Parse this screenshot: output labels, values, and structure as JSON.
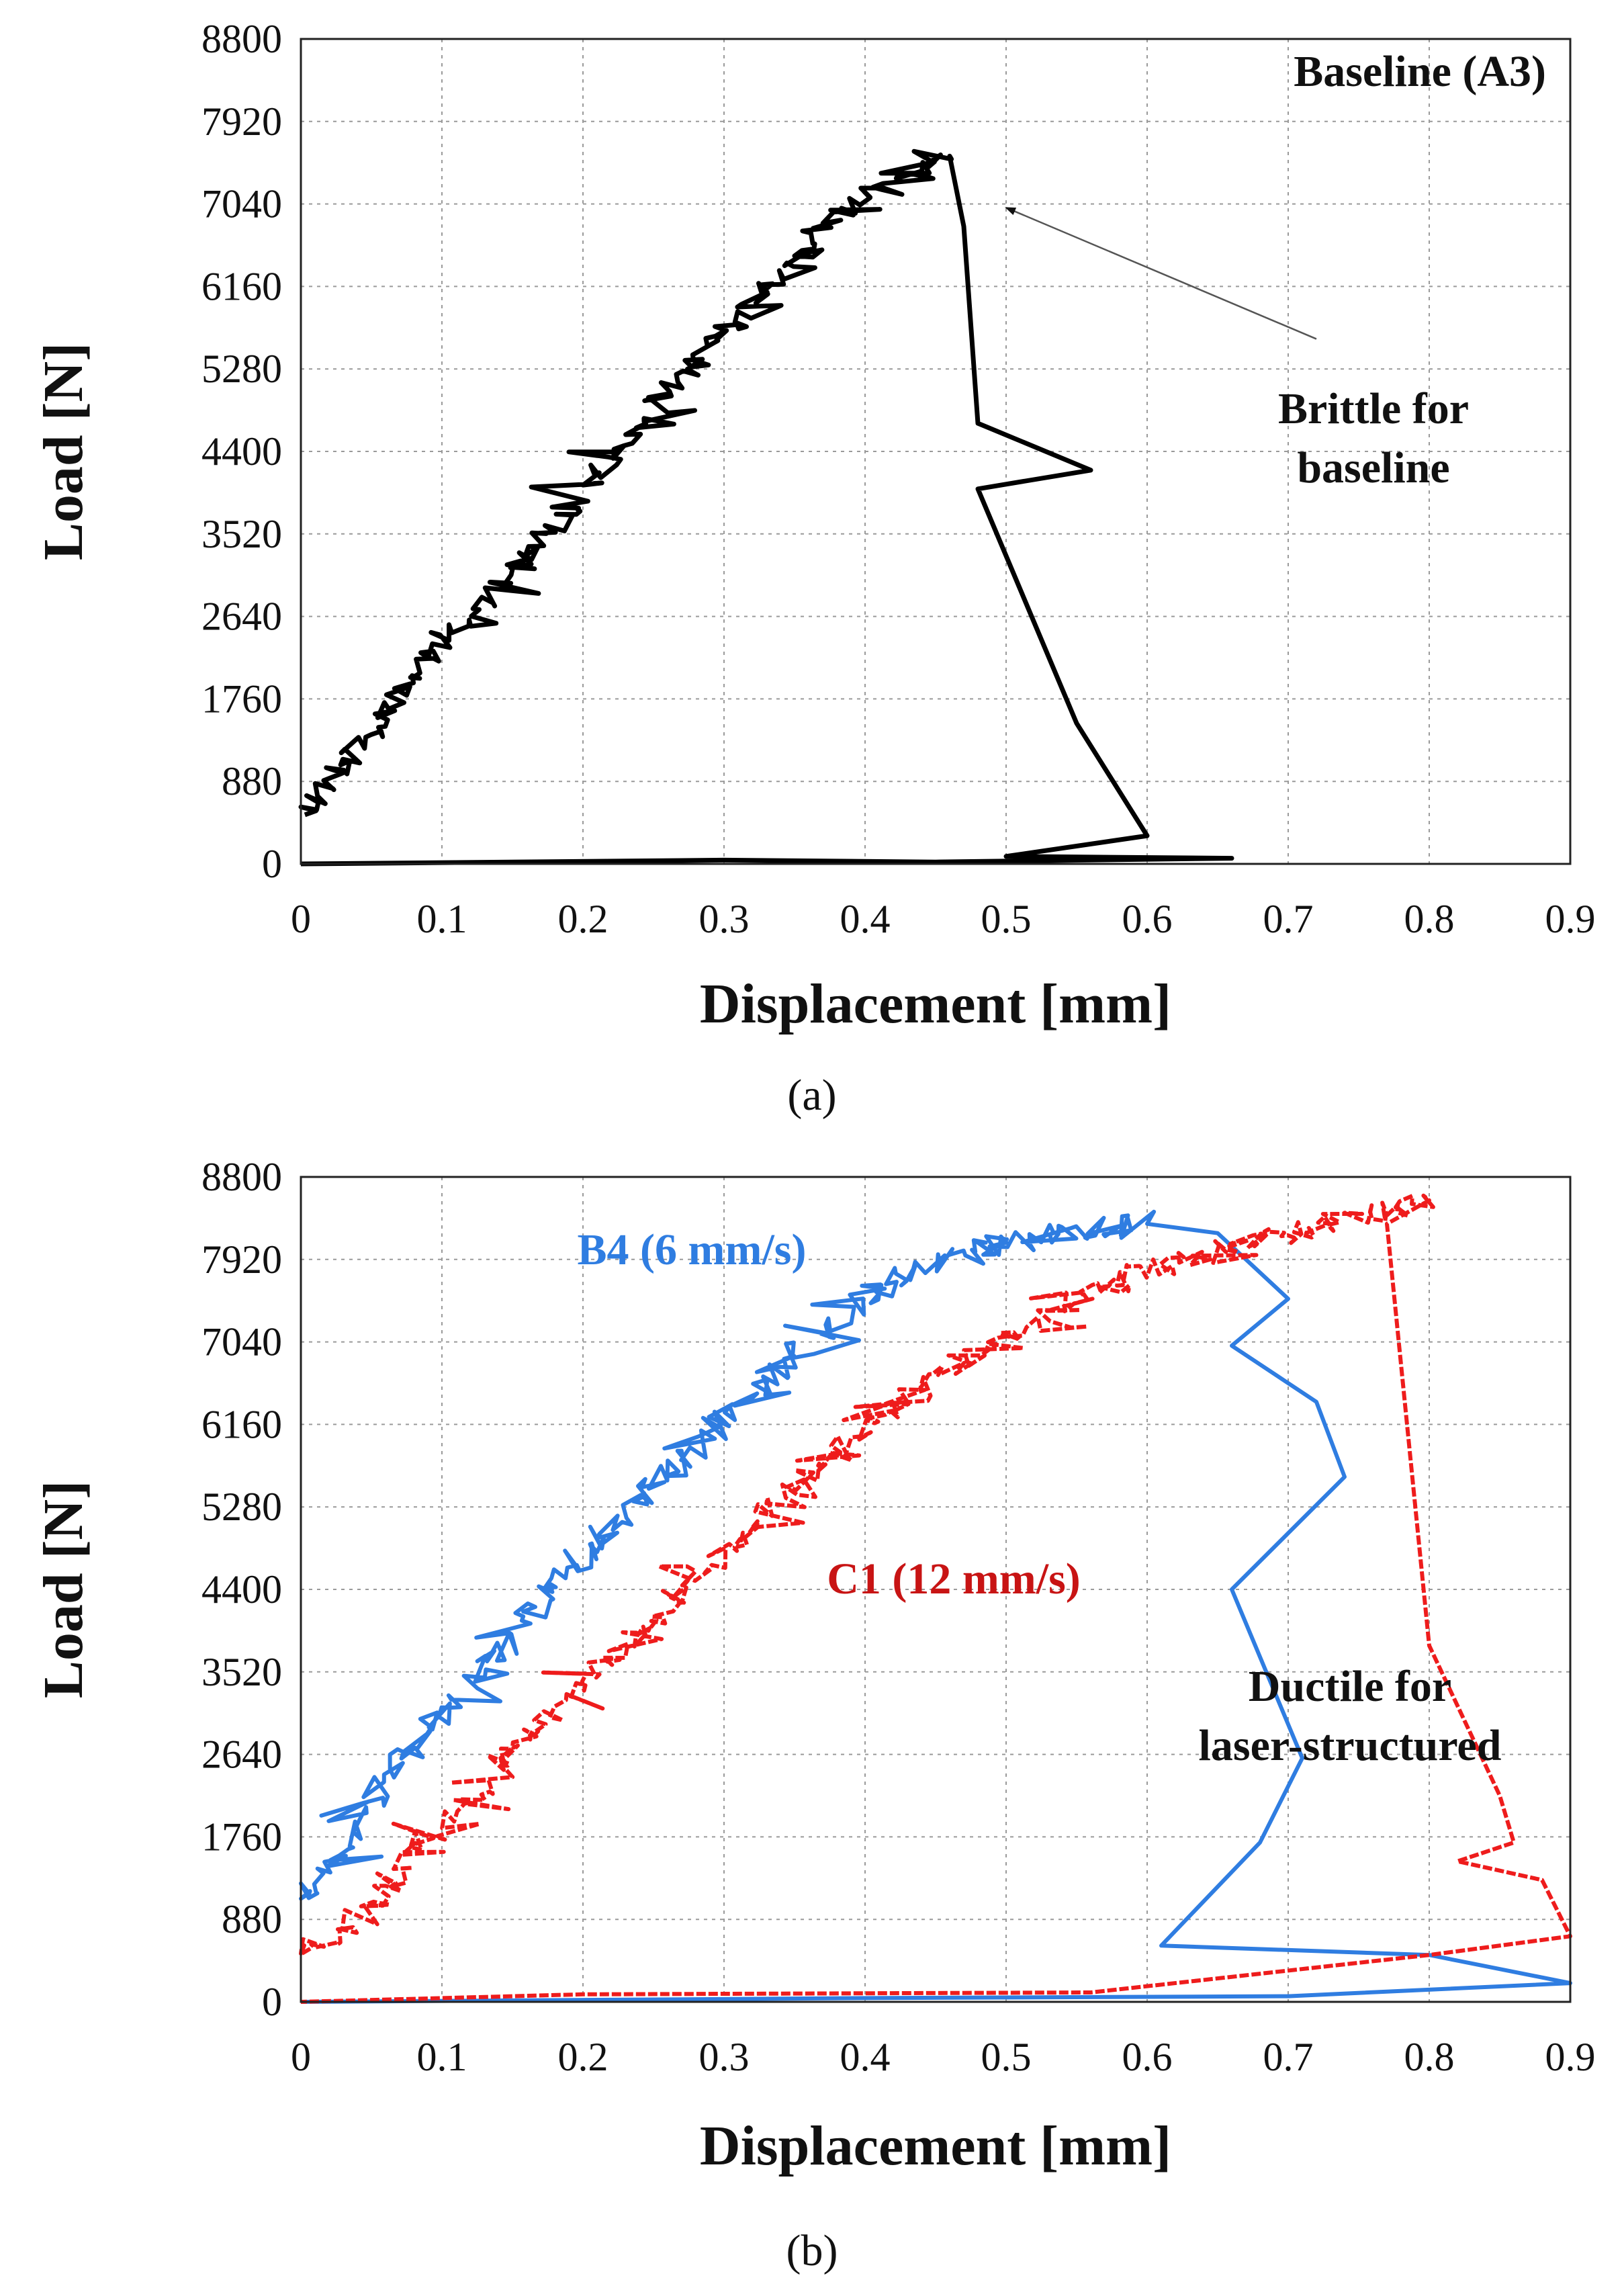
{
  "chart_data": [
    {
      "type": "line",
      "panel_label": "(a)",
      "xlabel": "Displacement [mm]",
      "ylabel": "Load [N]",
      "xlim": [
        0,
        0.9
      ],
      "ylim": [
        0,
        8800
      ],
      "xticks": [
        "0",
        "0.1",
        "0.2",
        "0.3",
        "0.4",
        "0.5",
        "0.6",
        "0.7",
        "0.8",
        "0.9"
      ],
      "yticks": [
        "0",
        "880",
        "1760",
        "2640",
        "3520",
        "4400",
        "5280",
        "6160",
        "7040",
        "7920",
        "8800"
      ],
      "grid": true,
      "annotations": [
        {
          "text": "Baseline (A3)",
          "color": "#111111"
        },
        {
          "lines": [
            "Brittle for",
            "baseline"
          ],
          "color": "#111111"
        }
      ],
      "arrow": {
        "from": [
          0.72,
          5600
        ],
        "to": [
          0.5,
          7000
        ]
      },
      "series": [
        {
          "name": "",
          "color": "#000000",
          "style": "solid",
          "jitter": 90,
          "x": [
            0,
            0.03,
            0.06,
            0.1,
            0.14,
            0.18,
            0.22,
            0.26,
            0.3,
            0.34,
            0.38,
            0.42,
            0.46,
            0.47,
            0.48,
            0.56,
            0.48,
            0.55,
            0.6,
            0.5,
            0.66,
            0.45,
            0.3,
            0.0
          ],
          "y": [
            500,
            1100,
            1600,
            2300,
            3000,
            3600,
            4300,
            5000,
            5700,
            6300,
            6900,
            7300,
            7550,
            6800,
            4700,
            4200,
            4000,
            1500,
            300,
            80,
            60,
            20,
            40,
            0
          ]
        }
      ]
    },
    {
      "type": "line",
      "panel_label": "(b)",
      "xlabel": "Displacement [mm]",
      "ylabel": "Load [N]",
      "xlim": [
        0,
        0.9
      ],
      "ylim": [
        0,
        8800
      ],
      "xticks": [
        "0",
        "0.1",
        "0.2",
        "0.3",
        "0.4",
        "0.5",
        "0.6",
        "0.7",
        "0.8",
        "0.9"
      ],
      "yticks": [
        "0",
        "880",
        "1760",
        "2640",
        "3520",
        "4400",
        "5280",
        "6160",
        "7040",
        "7920",
        "8800"
      ],
      "grid": true,
      "annotations": [
        {
          "text": "B4 (6 mm/s)",
          "color": "#2f7de1"
        },
        {
          "text": "C1 (12 mm/s)",
          "color": "#c81414"
        },
        {
          "lines": [
            "Ductile for",
            "laser-structured"
          ],
          "color": "#111111"
        }
      ],
      "series": [
        {
          "name": "B4 (6 mm/s)",
          "color": "#2f7de1",
          "style": "solid",
          "jitter": 140,
          "x": [
            0,
            0.04,
            0.08,
            0.12,
            0.16,
            0.2,
            0.25,
            0.3,
            0.35,
            0.4,
            0.45,
            0.5,
            0.55,
            0.6,
            0.65,
            0.7,
            0.66,
            0.72,
            0.74,
            0.7,
            0.66,
            0.71,
            0.68,
            0.61,
            0.8,
            0.9,
            0.7,
            0.4,
            0.0
          ],
          "y": [
            1000,
            1900,
            2700,
            3400,
            4100,
            4800,
            5500,
            6200,
            6900,
            7500,
            7900,
            8100,
            8200,
            8300,
            8200,
            7500,
            7000,
            6400,
            5600,
            5000,
            4400,
            2600,
            1700,
            600,
            500,
            200,
            60,
            40,
            0
          ]
        },
        {
          "name": "C1 (12 mm/s)",
          "color": "#ee1c1c",
          "style": "dashed",
          "jitter": 110,
          "x": [
            0,
            0.04,
            0.08,
            0.12,
            0.16,
            0.2,
            0.25,
            0.3,
            0.35,
            0.4,
            0.45,
            0.5,
            0.55,
            0.6,
            0.65,
            0.7,
            0.75,
            0.8,
            0.77,
            0.8,
            0.85,
            0.86,
            0.82,
            0.88,
            0.9,
            0.8,
            0.56,
            0.2,
            0.0
          ],
          "y": [
            500,
            900,
            1600,
            2200,
            2800,
            3400,
            4100,
            4800,
            5500,
            6100,
            6600,
            7100,
            7500,
            7800,
            8000,
            8200,
            8400,
            8550,
            8300,
            3800,
            2200,
            1700,
            1500,
            1300,
            700,
            500,
            100,
            80,
            0
          ]
        }
      ]
    }
  ]
}
